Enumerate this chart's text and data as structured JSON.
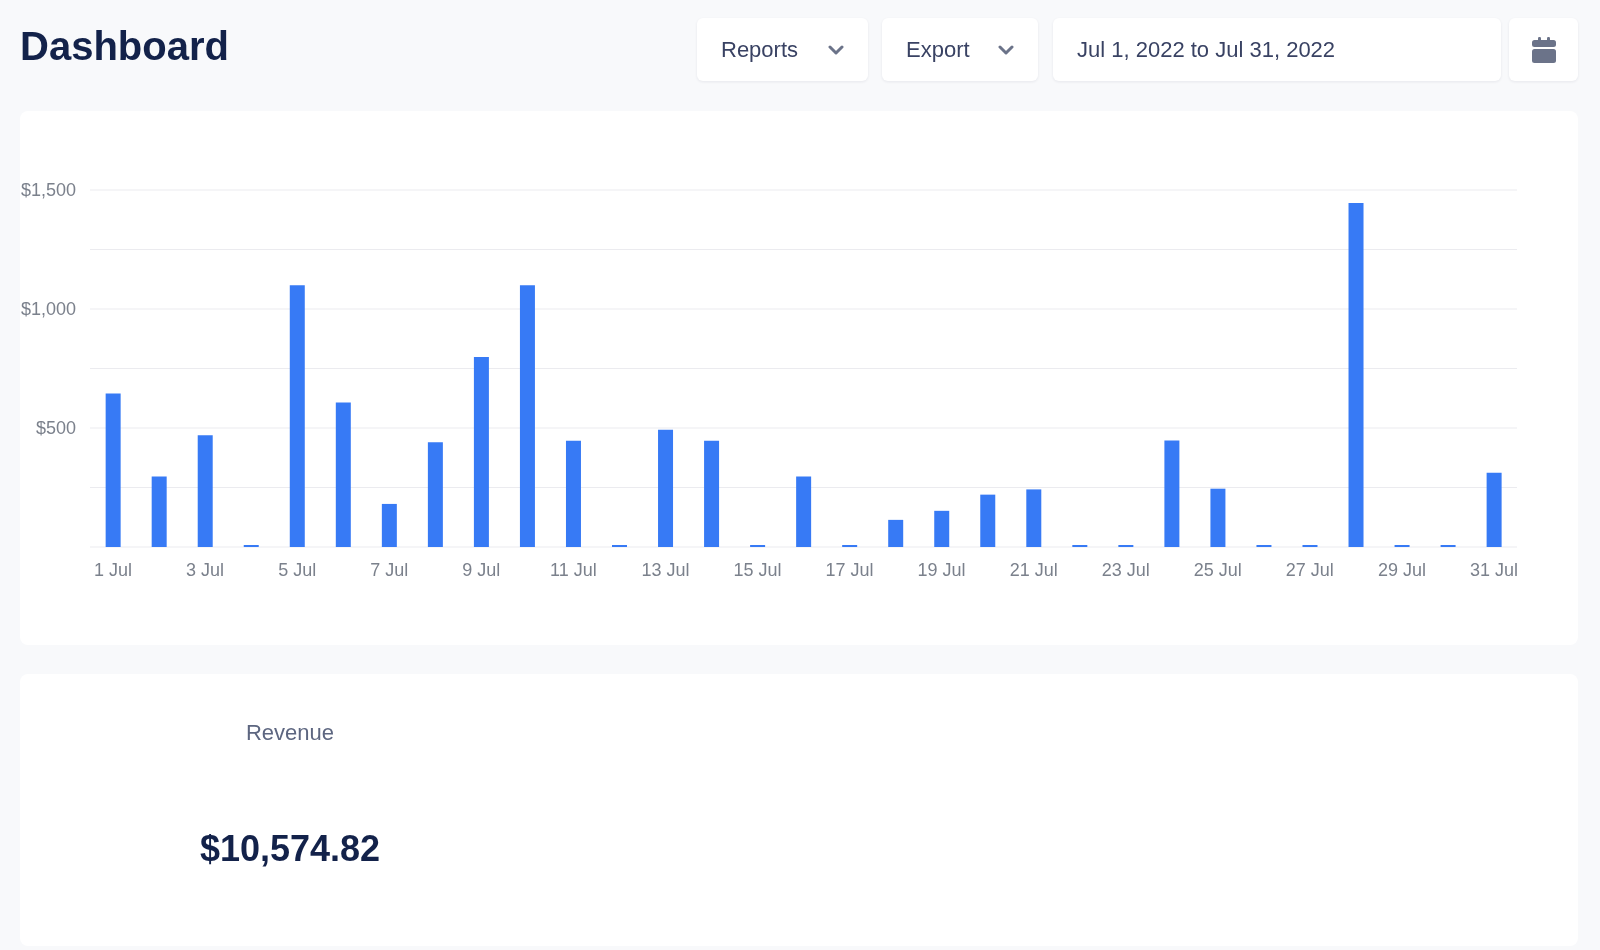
{
  "chart_data": {
    "type": "bar",
    "title": "Dashboard",
    "categories": [
      "1 Jul",
      null,
      "3 Jul",
      null,
      "5 Jul",
      null,
      "7 Jul",
      null,
      "9 Jul",
      null,
      "11 Jul",
      null,
      "13 Jul",
      null,
      "15 Jul",
      null,
      "17 Jul",
      null,
      "19 Jul",
      null,
      "21 Jul",
      null,
      "23 Jul",
      null,
      "25 Jul",
      null,
      "27 Jul",
      null,
      "29 Jul",
      null,
      "31 Jul"
    ],
    "values": [
      645,
      296,
      470,
      0,
      1100,
      607,
      181,
      440,
      798,
      1100,
      446,
      0,
      493,
      446,
      0,
      296,
      0,
      114,
      152,
      220,
      242,
      0,
      0,
      448,
      245,
      0,
      0,
      1445,
      0,
      0,
      312
    ],
    "color": "#377af5",
    "ylim": [
      0,
      1500
    ],
    "yticks": [
      {
        "value": 0,
        "label": null
      },
      {
        "value": 250,
        "label": null
      },
      {
        "value": 500,
        "label": "$500"
      },
      {
        "value": 750,
        "label": null
      },
      {
        "value": 1000,
        "label": "$1,000"
      },
      {
        "value": 1250,
        "label": null
      },
      {
        "value": 1500,
        "label": "$1,500"
      }
    ],
    "grid": "y",
    "annotations": [
      "Reports",
      "Export",
      "Jul 1, 2022 to Jul 31, 2022",
      "Revenue",
      "$10,574.82"
    ]
  }
}
